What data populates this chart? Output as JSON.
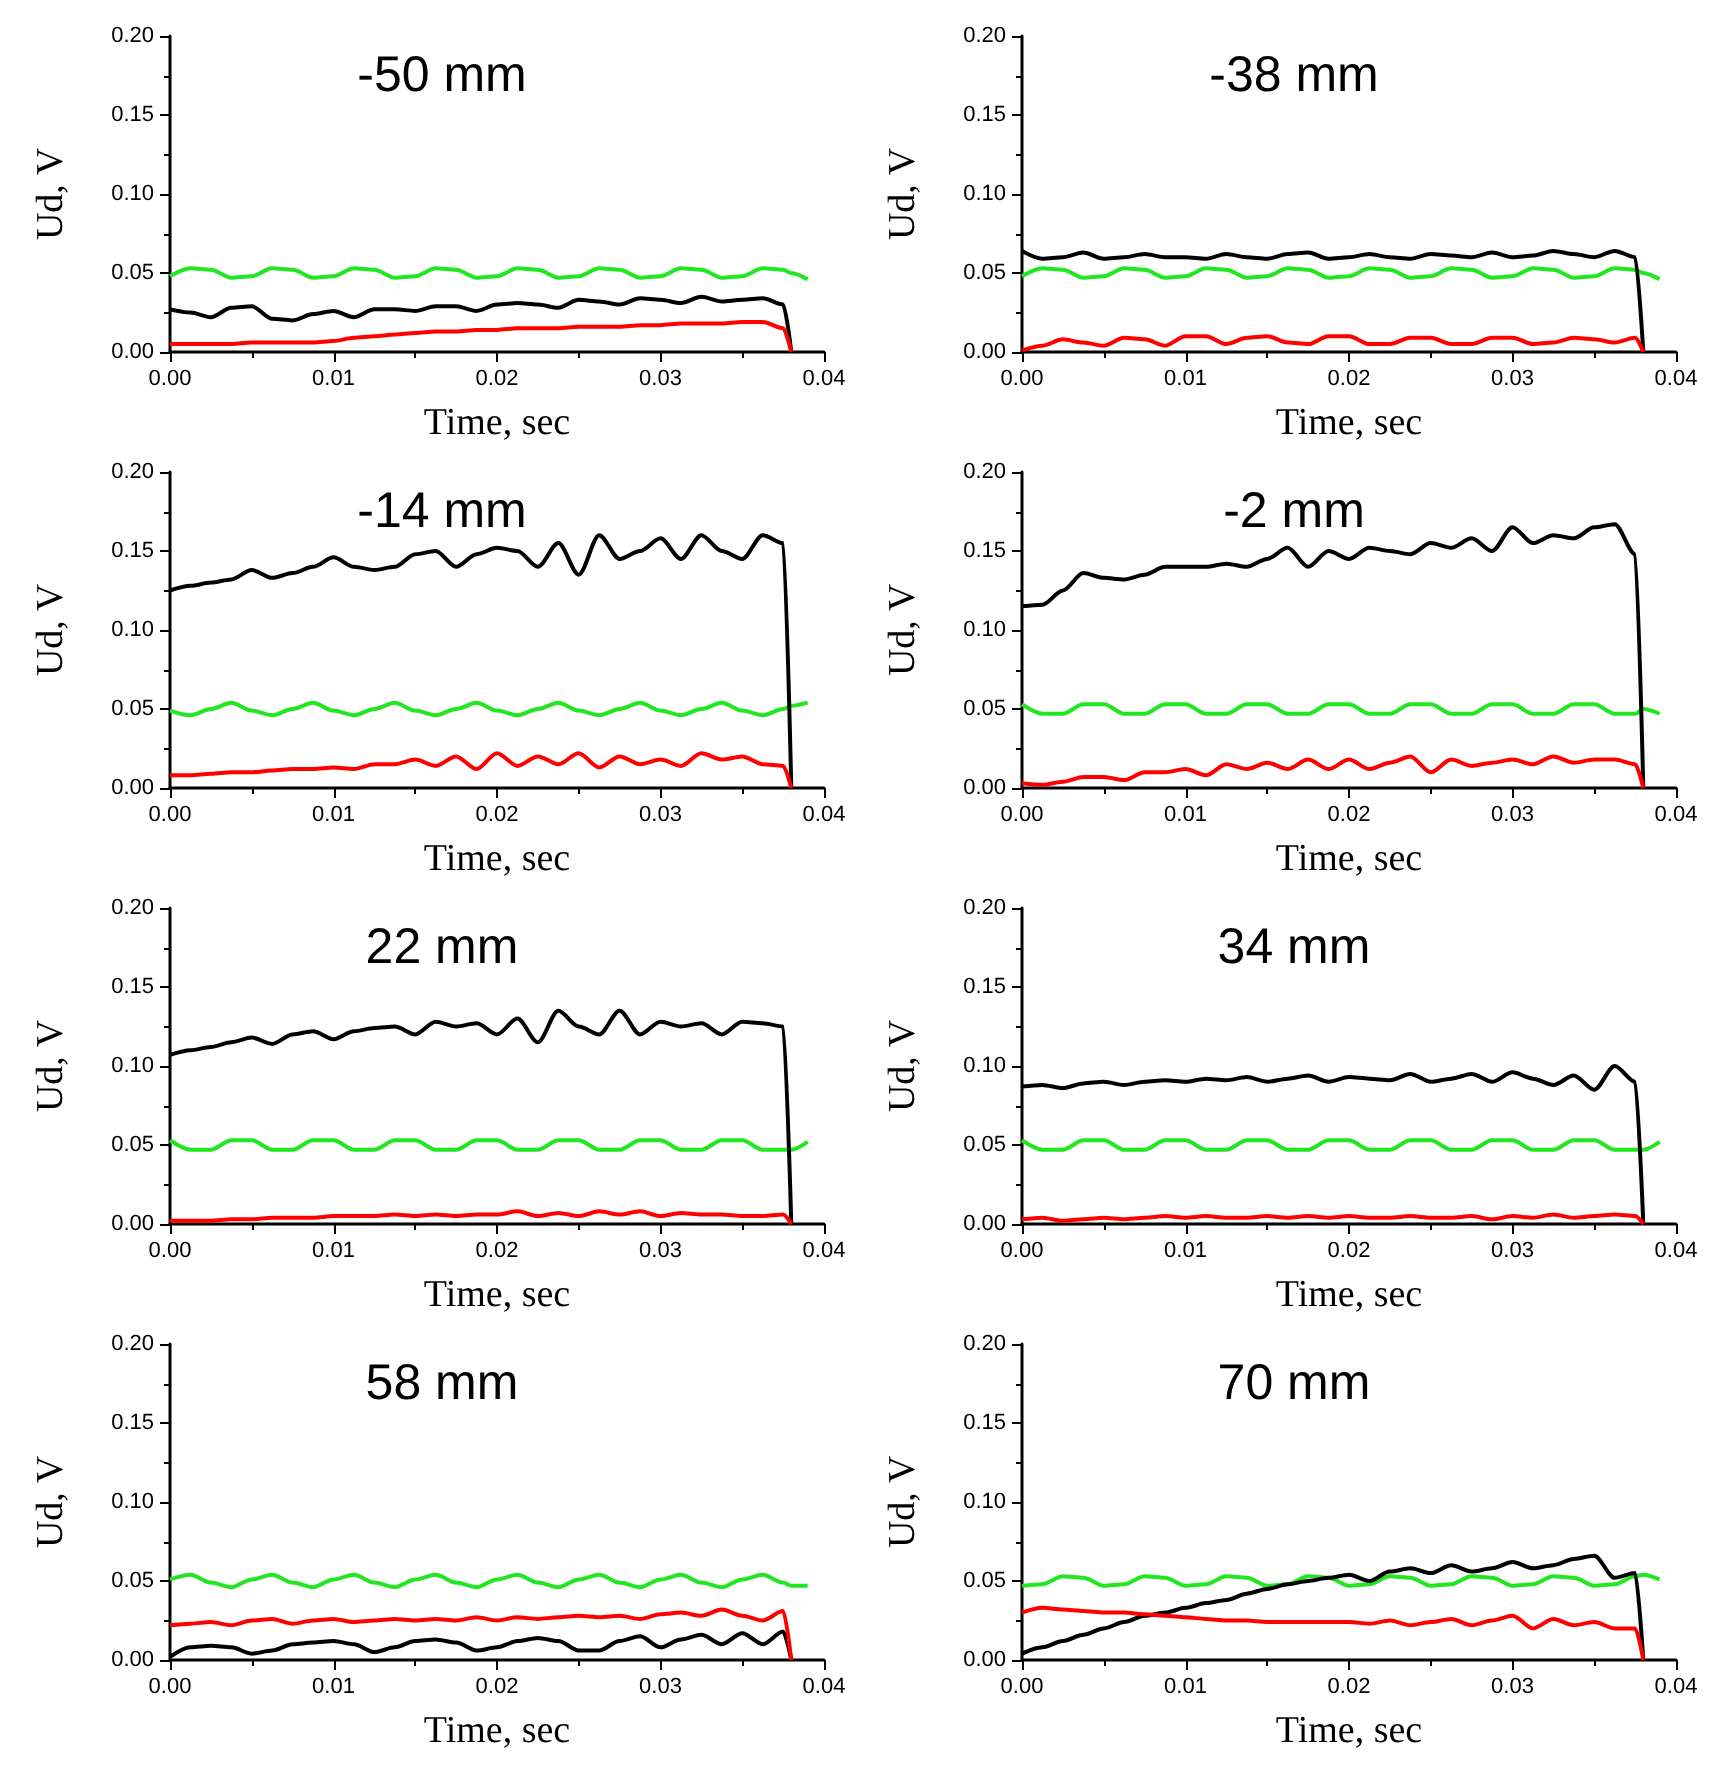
{
  "chart_data": [
    {
      "type": "line",
      "title": "-50 mm",
      "xlabel": "Time, sec",
      "ylabel": "Ud, V",
      "xlim": [
        0,
        0.04
      ],
      "xticks": [
        {
          "value": 0,
          "label": "0.00"
        },
        {
          "value": 0.01,
          "label": "0.01"
        },
        {
          "value": 0.02,
          "label": "0.02"
        },
        {
          "value": 0.03,
          "label": "0.03"
        },
        {
          "value": 0.04,
          "label": "0.04"
        }
      ],
      "ylim": [
        0,
        0.2
      ],
      "yticks": [
        {
          "value": 0,
          "label": "0.00"
        },
        {
          "value": 0.05,
          "label": "0.05"
        },
        {
          "value": 0.1,
          "label": "0.10"
        },
        {
          "value": 0.15,
          "label": "0.15"
        },
        {
          "value": 0.2,
          "label": "0.20"
        }
      ],
      "x": [
        0,
        0.00125,
        0.0025,
        0.00375,
        0.005,
        0.00625,
        0.0075,
        0.00875,
        0.01,
        0.01125,
        0.0125,
        0.01375,
        0.015,
        0.01625,
        0.0175,
        0.01875,
        0.02,
        0.02125,
        0.0225,
        0.02375,
        0.025,
        0.02625,
        0.0275,
        0.02875,
        0.03,
        0.03125,
        0.0325,
        0.03375,
        0.035,
        0.03625,
        0.0375,
        0.038,
        0.039
      ],
      "series": [
        {
          "color": "#22e622",
          "values": [
            0.048,
            0.053,
            0.052,
            0.047,
            0.048,
            0.053,
            0.052,
            0.047,
            0.048,
            0.053,
            0.052,
            0.047,
            0.048,
            0.053,
            0.052,
            0.047,
            0.048,
            0.053,
            0.052,
            0.047,
            0.048,
            0.053,
            0.052,
            0.047,
            0.048,
            0.053,
            0.052,
            0.047,
            0.048,
            0.053,
            0.052,
            0.05,
            0.046
          ]
        },
        {
          "color": "#000000",
          "values": [
            0.027,
            0.025,
            0.022,
            0.028,
            0.029,
            0.021,
            0.02,
            0.024,
            0.026,
            0.022,
            0.027,
            0.027,
            0.026,
            0.029,
            0.029,
            0.026,
            0.03,
            0.031,
            0.03,
            0.028,
            0.033,
            0.032,
            0.03,
            0.034,
            0.033,
            0.031,
            0.035,
            0.032,
            0.033,
            0.034,
            0.03,
            0,
            null
          ]
        },
        {
          "color": "#ff0000",
          "values": [
            0.005,
            0.005,
            0.005,
            0.005,
            0.006,
            0.006,
            0.006,
            0.006,
            0.007,
            0.009,
            0.01,
            0.011,
            0.012,
            0.013,
            0.013,
            0.014,
            0.014,
            0.015,
            0.015,
            0.015,
            0.016,
            0.016,
            0.016,
            0.017,
            0.017,
            0.018,
            0.018,
            0.018,
            0.019,
            0.019,
            0.015,
            0,
            null
          ]
        }
      ]
    },
    {
      "type": "line",
      "title": "-38 mm",
      "xlabel": "Time, sec",
      "ylabel": "Ud, V",
      "xlim": [
        0,
        0.04
      ],
      "xticks": [
        {
          "value": 0,
          "label": "0.00"
        },
        {
          "value": 0.01,
          "label": "0.01"
        },
        {
          "value": 0.02,
          "label": "0.02"
        },
        {
          "value": 0.03,
          "label": "0.03"
        },
        {
          "value": 0.04,
          "label": "0.04"
        }
      ],
      "ylim": [
        0,
        0.2
      ],
      "yticks": [
        {
          "value": 0,
          "label": "0.00"
        },
        {
          "value": 0.05,
          "label": "0.05"
        },
        {
          "value": 0.1,
          "label": "0.10"
        },
        {
          "value": 0.15,
          "label": "0.15"
        },
        {
          "value": 0.2,
          "label": "0.20"
        }
      ],
      "x": [
        0,
        0.00125,
        0.0025,
        0.00375,
        0.005,
        0.00625,
        0.0075,
        0.00875,
        0.01,
        0.01125,
        0.0125,
        0.01375,
        0.015,
        0.01625,
        0.0175,
        0.01875,
        0.02,
        0.02125,
        0.0225,
        0.02375,
        0.025,
        0.02625,
        0.0275,
        0.02875,
        0.03,
        0.03125,
        0.0325,
        0.03375,
        0.035,
        0.03625,
        0.0375,
        0.038,
        0.039
      ],
      "series": [
        {
          "color": "#22e622",
          "values": [
            0.048,
            0.053,
            0.052,
            0.047,
            0.048,
            0.053,
            0.052,
            0.047,
            0.048,
            0.053,
            0.052,
            0.047,
            0.048,
            0.053,
            0.052,
            0.047,
            0.048,
            0.053,
            0.052,
            0.047,
            0.048,
            0.053,
            0.052,
            0.047,
            0.048,
            0.053,
            0.052,
            0.047,
            0.048,
            0.053,
            0.052,
            0.05,
            0.046
          ]
        },
        {
          "color": "#000000",
          "values": [
            0.064,
            0.059,
            0.06,
            0.063,
            0.059,
            0.06,
            0.062,
            0.06,
            0.06,
            0.059,
            0.062,
            0.06,
            0.059,
            0.062,
            0.063,
            0.059,
            0.06,
            0.062,
            0.06,
            0.059,
            0.062,
            0.061,
            0.06,
            0.063,
            0.06,
            0.061,
            0.064,
            0.062,
            0.06,
            0.064,
            0.06,
            0,
            null
          ]
        },
        {
          "color": "#ff0000",
          "values": [
            0.001,
            0.004,
            0.008,
            0.006,
            0.004,
            0.009,
            0.008,
            0.004,
            0.01,
            0.01,
            0.005,
            0.009,
            0.01,
            0.006,
            0.005,
            0.01,
            0.01,
            0.005,
            0.005,
            0.009,
            0.009,
            0.005,
            0.005,
            0.009,
            0.009,
            0.005,
            0.006,
            0.009,
            0.008,
            0.006,
            0.009,
            0,
            null
          ]
        }
      ]
    },
    {
      "type": "line",
      "title": "-14 mm",
      "xlabel": "Time, sec",
      "ylabel": "Ud, V",
      "xlim": [
        0,
        0.04
      ],
      "xticks": [
        {
          "value": 0,
          "label": "0.00"
        },
        {
          "value": 0.01,
          "label": "0.01"
        },
        {
          "value": 0.02,
          "label": "0.02"
        },
        {
          "value": 0.03,
          "label": "0.03"
        },
        {
          "value": 0.04,
          "label": "0.04"
        }
      ],
      "ylim": [
        0,
        0.2
      ],
      "yticks": [
        {
          "value": 0,
          "label": "0.00"
        },
        {
          "value": 0.05,
          "label": "0.05"
        },
        {
          "value": 0.1,
          "label": "0.10"
        },
        {
          "value": 0.15,
          "label": "0.15"
        },
        {
          "value": 0.2,
          "label": "0.20"
        }
      ],
      "x": [
        0,
        0.00125,
        0.0025,
        0.00375,
        0.005,
        0.00625,
        0.0075,
        0.00875,
        0.01,
        0.01125,
        0.0125,
        0.01375,
        0.015,
        0.01625,
        0.0175,
        0.01875,
        0.02,
        0.02125,
        0.0225,
        0.02375,
        0.025,
        0.02625,
        0.0275,
        0.02875,
        0.03,
        0.03125,
        0.0325,
        0.03375,
        0.035,
        0.03625,
        0.0375,
        0.038,
        0.039
      ],
      "series": [
        {
          "color": "#22e622",
          "values": [
            0.049,
            0.046,
            0.05,
            0.054,
            0.049,
            0.046,
            0.05,
            0.054,
            0.049,
            0.046,
            0.05,
            0.054,
            0.049,
            0.046,
            0.05,
            0.054,
            0.049,
            0.046,
            0.05,
            0.054,
            0.049,
            0.046,
            0.05,
            0.054,
            0.049,
            0.046,
            0.05,
            0.054,
            0.049,
            0.046,
            0.05,
            0.052,
            0.054
          ]
        },
        {
          "color": "#000000",
          "values": [
            0.125,
            0.128,
            0.13,
            0.132,
            0.138,
            0.133,
            0.136,
            0.14,
            0.146,
            0.14,
            0.138,
            0.14,
            0.148,
            0.15,
            0.14,
            0.148,
            0.152,
            0.15,
            0.14,
            0.155,
            0.135,
            0.16,
            0.145,
            0.15,
            0.158,
            0.145,
            0.16,
            0.15,
            0.145,
            0.16,
            0.155,
            0,
            null
          ]
        },
        {
          "color": "#ff0000",
          "values": [
            0.008,
            0.008,
            0.009,
            0.01,
            0.01,
            0.011,
            0.012,
            0.012,
            0.013,
            0.012,
            0.015,
            0.015,
            0.018,
            0.014,
            0.02,
            0.012,
            0.022,
            0.014,
            0.02,
            0.015,
            0.022,
            0.013,
            0.02,
            0.015,
            0.018,
            0.014,
            0.022,
            0.018,
            0.02,
            0.015,
            0.014,
            0,
            null
          ]
        }
      ]
    },
    {
      "type": "line",
      "title": "-2 mm",
      "xlabel": "Time, sec",
      "ylabel": "Ud, V",
      "xlim": [
        0,
        0.04
      ],
      "xticks": [
        {
          "value": 0,
          "label": "0.00"
        },
        {
          "value": 0.01,
          "label": "0.01"
        },
        {
          "value": 0.02,
          "label": "0.02"
        },
        {
          "value": 0.03,
          "label": "0.03"
        },
        {
          "value": 0.04,
          "label": "0.04"
        }
      ],
      "ylim": [
        0,
        0.2
      ],
      "yticks": [
        {
          "value": 0,
          "label": "0.00"
        },
        {
          "value": 0.05,
          "label": "0.05"
        },
        {
          "value": 0.1,
          "label": "0.10"
        },
        {
          "value": 0.15,
          "label": "0.15"
        },
        {
          "value": 0.2,
          "label": "0.20"
        }
      ],
      "x": [
        0,
        0.00125,
        0.0025,
        0.00375,
        0.005,
        0.00625,
        0.0075,
        0.00875,
        0.01,
        0.01125,
        0.0125,
        0.01375,
        0.015,
        0.01625,
        0.0175,
        0.01875,
        0.02,
        0.02125,
        0.0225,
        0.02375,
        0.025,
        0.02625,
        0.0275,
        0.02875,
        0.03,
        0.03125,
        0.0325,
        0.03375,
        0.035,
        0.03625,
        0.0375,
        0.038,
        0.039
      ],
      "series": [
        {
          "color": "#22e622",
          "values": [
            0.053,
            0.047,
            0.047,
            0.053,
            0.053,
            0.047,
            0.047,
            0.053,
            0.053,
            0.047,
            0.047,
            0.053,
            0.053,
            0.047,
            0.047,
            0.053,
            0.053,
            0.047,
            0.047,
            0.053,
            0.053,
            0.047,
            0.047,
            0.053,
            0.053,
            0.047,
            0.047,
            0.053,
            0.053,
            0.047,
            0.047,
            0.05,
            0.047
          ]
        },
        {
          "color": "#000000",
          "values": [
            0.115,
            0.116,
            0.125,
            0.136,
            0.133,
            0.132,
            0.135,
            0.14,
            0.14,
            0.14,
            0.142,
            0.14,
            0.145,
            0.152,
            0.14,
            0.15,
            0.145,
            0.152,
            0.15,
            0.148,
            0.155,
            0.152,
            0.158,
            0.15,
            0.165,
            0.155,
            0.16,
            0.158,
            0.165,
            0.167,
            0.148,
            0,
            null
          ]
        },
        {
          "color": "#ff0000",
          "values": [
            0.003,
            0.002,
            0.004,
            0.007,
            0.007,
            0.005,
            0.01,
            0.01,
            0.012,
            0.008,
            0.015,
            0.012,
            0.016,
            0.012,
            0.018,
            0.012,
            0.018,
            0.012,
            0.016,
            0.02,
            0.01,
            0.018,
            0.014,
            0.016,
            0.018,
            0.015,
            0.02,
            0.016,
            0.018,
            0.018,
            0.015,
            0,
            null
          ]
        }
      ]
    },
    {
      "type": "line",
      "title": "22 mm",
      "xlabel": "Time, sec",
      "ylabel": "Ud, V",
      "xlim": [
        0,
        0.04
      ],
      "xticks": [
        {
          "value": 0,
          "label": "0.00"
        },
        {
          "value": 0.01,
          "label": "0.01"
        },
        {
          "value": 0.02,
          "label": "0.02"
        },
        {
          "value": 0.03,
          "label": "0.03"
        },
        {
          "value": 0.04,
          "label": "0.04"
        }
      ],
      "ylim": [
        0,
        0.2
      ],
      "yticks": [
        {
          "value": 0,
          "label": "0.00"
        },
        {
          "value": 0.05,
          "label": "0.05"
        },
        {
          "value": 0.1,
          "label": "0.10"
        },
        {
          "value": 0.15,
          "label": "0.15"
        },
        {
          "value": 0.2,
          "label": "0.20"
        }
      ],
      "x": [
        0,
        0.00125,
        0.0025,
        0.00375,
        0.005,
        0.00625,
        0.0075,
        0.00875,
        0.01,
        0.01125,
        0.0125,
        0.01375,
        0.015,
        0.01625,
        0.0175,
        0.01875,
        0.02,
        0.02125,
        0.0225,
        0.02375,
        0.025,
        0.02625,
        0.0275,
        0.02875,
        0.03,
        0.03125,
        0.0325,
        0.03375,
        0.035,
        0.03625,
        0.0375,
        0.038,
        0.039
      ],
      "series": [
        {
          "color": "#22e622",
          "values": [
            0.053,
            0.047,
            0.047,
            0.053,
            0.053,
            0.047,
            0.047,
            0.053,
            0.053,
            0.047,
            0.047,
            0.053,
            0.053,
            0.047,
            0.047,
            0.053,
            0.053,
            0.047,
            0.047,
            0.053,
            0.053,
            0.047,
            0.047,
            0.053,
            0.053,
            0.047,
            0.047,
            0.053,
            0.053,
            0.047,
            0.047,
            0.047,
            0.052
          ]
        },
        {
          "color": "#000000",
          "values": [
            0.107,
            0.11,
            0.112,
            0.115,
            0.118,
            0.114,
            0.12,
            0.122,
            0.117,
            0.122,
            0.124,
            0.125,
            0.12,
            0.128,
            0.125,
            0.127,
            0.12,
            0.13,
            0.115,
            0.135,
            0.125,
            0.12,
            0.135,
            0.12,
            0.128,
            0.125,
            0.127,
            0.12,
            0.128,
            0.127,
            0.125,
            0,
            null
          ]
        },
        {
          "color": "#ff0000",
          "values": [
            0.002,
            0.002,
            0.002,
            0.003,
            0.003,
            0.004,
            0.004,
            0.004,
            0.005,
            0.005,
            0.005,
            0.006,
            0.005,
            0.006,
            0.005,
            0.006,
            0.006,
            0.008,
            0.005,
            0.007,
            0.005,
            0.008,
            0.006,
            0.008,
            0.005,
            0.007,
            0.006,
            0.006,
            0.005,
            0.005,
            0.006,
            0,
            null
          ]
        }
      ]
    },
    {
      "type": "line",
      "title": "34 mm",
      "xlabel": "Time, sec",
      "ylabel": "Ud, V",
      "xlim": [
        0,
        0.04
      ],
      "xticks": [
        {
          "value": 0,
          "label": "0.00"
        },
        {
          "value": 0.01,
          "label": "0.01"
        },
        {
          "value": 0.02,
          "label": "0.02"
        },
        {
          "value": 0.03,
          "label": "0.03"
        },
        {
          "value": 0.04,
          "label": "0.04"
        }
      ],
      "ylim": [
        0,
        0.2
      ],
      "yticks": [
        {
          "value": 0,
          "label": "0.00"
        },
        {
          "value": 0.05,
          "label": "0.05"
        },
        {
          "value": 0.1,
          "label": "0.10"
        },
        {
          "value": 0.15,
          "label": "0.15"
        },
        {
          "value": 0.2,
          "label": "0.20"
        }
      ],
      "x": [
        0,
        0.00125,
        0.0025,
        0.00375,
        0.005,
        0.00625,
        0.0075,
        0.00875,
        0.01,
        0.01125,
        0.0125,
        0.01375,
        0.015,
        0.01625,
        0.0175,
        0.01875,
        0.02,
        0.02125,
        0.0225,
        0.02375,
        0.025,
        0.02625,
        0.0275,
        0.02875,
        0.03,
        0.03125,
        0.0325,
        0.03375,
        0.035,
        0.03625,
        0.0375,
        0.038,
        0.039
      ],
      "series": [
        {
          "color": "#22e622",
          "values": [
            0.053,
            0.047,
            0.047,
            0.053,
            0.053,
            0.047,
            0.047,
            0.053,
            0.053,
            0.047,
            0.047,
            0.053,
            0.053,
            0.047,
            0.047,
            0.053,
            0.053,
            0.047,
            0.047,
            0.053,
            0.053,
            0.047,
            0.047,
            0.053,
            0.053,
            0.047,
            0.047,
            0.053,
            0.053,
            0.047,
            0.047,
            0.047,
            0.052
          ]
        },
        {
          "color": "#000000",
          "values": [
            0.087,
            0.088,
            0.086,
            0.089,
            0.09,
            0.088,
            0.09,
            0.091,
            0.09,
            0.092,
            0.091,
            0.093,
            0.09,
            0.092,
            0.094,
            0.09,
            0.093,
            0.092,
            0.091,
            0.095,
            0.09,
            0.092,
            0.095,
            0.09,
            0.096,
            0.092,
            0.088,
            0.094,
            0.085,
            0.1,
            0.09,
            0,
            null
          ]
        },
        {
          "color": "#ff0000",
          "values": [
            0.003,
            0.004,
            0.002,
            0.003,
            0.004,
            0.003,
            0.004,
            0.005,
            0.004,
            0.005,
            0.004,
            0.004,
            0.005,
            0.004,
            0.005,
            0.004,
            0.005,
            0.004,
            0.004,
            0.005,
            0.004,
            0.004,
            0.005,
            0.003,
            0.005,
            0.004,
            0.006,
            0.004,
            0.005,
            0.006,
            0.005,
            0,
            null
          ]
        }
      ]
    },
    {
      "type": "line",
      "title": "58 mm",
      "xlabel": "Time, sec",
      "ylabel": "Ud, V",
      "xlim": [
        0,
        0.04
      ],
      "xticks": [
        {
          "value": 0,
          "label": "0.00"
        },
        {
          "value": 0.01,
          "label": "0.01"
        },
        {
          "value": 0.02,
          "label": "0.02"
        },
        {
          "value": 0.03,
          "label": "0.03"
        },
        {
          "value": 0.04,
          "label": "0.04"
        }
      ],
      "ylim": [
        0,
        0.2
      ],
      "yticks": [
        {
          "value": 0,
          "label": "0.00"
        },
        {
          "value": 0.05,
          "label": "0.05"
        },
        {
          "value": 0.1,
          "label": "0.10"
        },
        {
          "value": 0.15,
          "label": "0.15"
        },
        {
          "value": 0.2,
          "label": "0.20"
        }
      ],
      "x": [
        0,
        0.00125,
        0.0025,
        0.00375,
        0.005,
        0.00625,
        0.0075,
        0.00875,
        0.01,
        0.01125,
        0.0125,
        0.01375,
        0.015,
        0.01625,
        0.0175,
        0.01875,
        0.02,
        0.02125,
        0.0225,
        0.02375,
        0.025,
        0.02625,
        0.0275,
        0.02875,
        0.03,
        0.03125,
        0.0325,
        0.03375,
        0.035,
        0.03625,
        0.0375,
        0.038,
        0.039
      ],
      "series": [
        {
          "color": "#22e622",
          "values": [
            0.051,
            0.054,
            0.049,
            0.046,
            0.051,
            0.054,
            0.049,
            0.046,
            0.051,
            0.054,
            0.049,
            0.046,
            0.051,
            0.054,
            0.049,
            0.046,
            0.051,
            0.054,
            0.049,
            0.046,
            0.051,
            0.054,
            0.049,
            0.046,
            0.051,
            0.054,
            0.049,
            0.046,
            0.051,
            0.054,
            0.049,
            0.047,
            0.047
          ]
        },
        {
          "color": "#000000",
          "values": [
            0.002,
            0.008,
            0.009,
            0.008,
            0.004,
            0.006,
            0.01,
            0.011,
            0.012,
            0.01,
            0.005,
            0.008,
            0.012,
            0.013,
            0.011,
            0.006,
            0.008,
            0.012,
            0.014,
            0.012,
            0.006,
            0.006,
            0.012,
            0.015,
            0.008,
            0.013,
            0.016,
            0.01,
            0.017,
            0.01,
            0.018,
            0,
            null
          ]
        },
        {
          "color": "#ff0000",
          "values": [
            0.022,
            0.023,
            0.024,
            0.022,
            0.025,
            0.026,
            0.023,
            0.025,
            0.026,
            0.024,
            0.025,
            0.026,
            0.025,
            0.026,
            0.025,
            0.027,
            0.025,
            0.027,
            0.026,
            0.027,
            0.028,
            0.027,
            0.028,
            0.026,
            0.029,
            0.03,
            0.028,
            0.032,
            0.028,
            0.025,
            0.031,
            0,
            null
          ]
        }
      ]
    },
    {
      "type": "line",
      "title": "70 mm",
      "xlabel": "Time, sec",
      "ylabel": "Ud, V",
      "xlim": [
        0,
        0.04
      ],
      "xticks": [
        {
          "value": 0,
          "label": "0.00"
        },
        {
          "value": 0.01,
          "label": "0.01"
        },
        {
          "value": 0.02,
          "label": "0.02"
        },
        {
          "value": 0.03,
          "label": "0.03"
        },
        {
          "value": 0.04,
          "label": "0.04"
        }
      ],
      "ylim": [
        0,
        0.2
      ],
      "yticks": [
        {
          "value": 0,
          "label": "0.00"
        },
        {
          "value": 0.05,
          "label": "0.05"
        },
        {
          "value": 0.1,
          "label": "0.10"
        },
        {
          "value": 0.15,
          "label": "0.15"
        },
        {
          "value": 0.2,
          "label": "0.20"
        }
      ],
      "x": [
        0,
        0.00125,
        0.0025,
        0.00375,
        0.005,
        0.00625,
        0.0075,
        0.00875,
        0.01,
        0.01125,
        0.0125,
        0.01375,
        0.015,
        0.01625,
        0.0175,
        0.01875,
        0.02,
        0.02125,
        0.0225,
        0.02375,
        0.025,
        0.02625,
        0.0275,
        0.02875,
        0.03,
        0.03125,
        0.0325,
        0.03375,
        0.035,
        0.03625,
        0.0375,
        0.038,
        0.039
      ],
      "series": [
        {
          "color": "#22e622",
          "values": [
            0.047,
            0.048,
            0.053,
            0.052,
            0.047,
            0.048,
            0.053,
            0.052,
            0.047,
            0.048,
            0.053,
            0.052,
            0.047,
            0.048,
            0.053,
            0.052,
            0.047,
            0.048,
            0.053,
            0.052,
            0.047,
            0.048,
            0.053,
            0.052,
            0.047,
            0.048,
            0.053,
            0.052,
            0.047,
            0.048,
            0.053,
            0.054,
            0.051
          ]
        },
        {
          "color": "#000000",
          "values": [
            0.004,
            0.008,
            0.012,
            0.016,
            0.02,
            0.024,
            0.028,
            0.03,
            0.033,
            0.036,
            0.038,
            0.042,
            0.045,
            0.048,
            0.05,
            0.052,
            0.054,
            0.05,
            0.056,
            0.058,
            0.055,
            0.06,
            0.056,
            0.058,
            0.062,
            0.058,
            0.06,
            0.064,
            0.066,
            0.052,
            0.055,
            0,
            null
          ]
        },
        {
          "color": "#ff0000",
          "values": [
            0.03,
            0.033,
            0.032,
            0.031,
            0.03,
            0.03,
            0.029,
            0.028,
            0.027,
            0.026,
            0.025,
            0.025,
            0.024,
            0.024,
            0.024,
            0.024,
            0.024,
            0.023,
            0.025,
            0.022,
            0.024,
            0.026,
            0.022,
            0.025,
            0.028,
            0.02,
            0.026,
            0.022,
            0.024,
            0.02,
            0.02,
            0,
            null
          ]
        }
      ]
    }
  ]
}
